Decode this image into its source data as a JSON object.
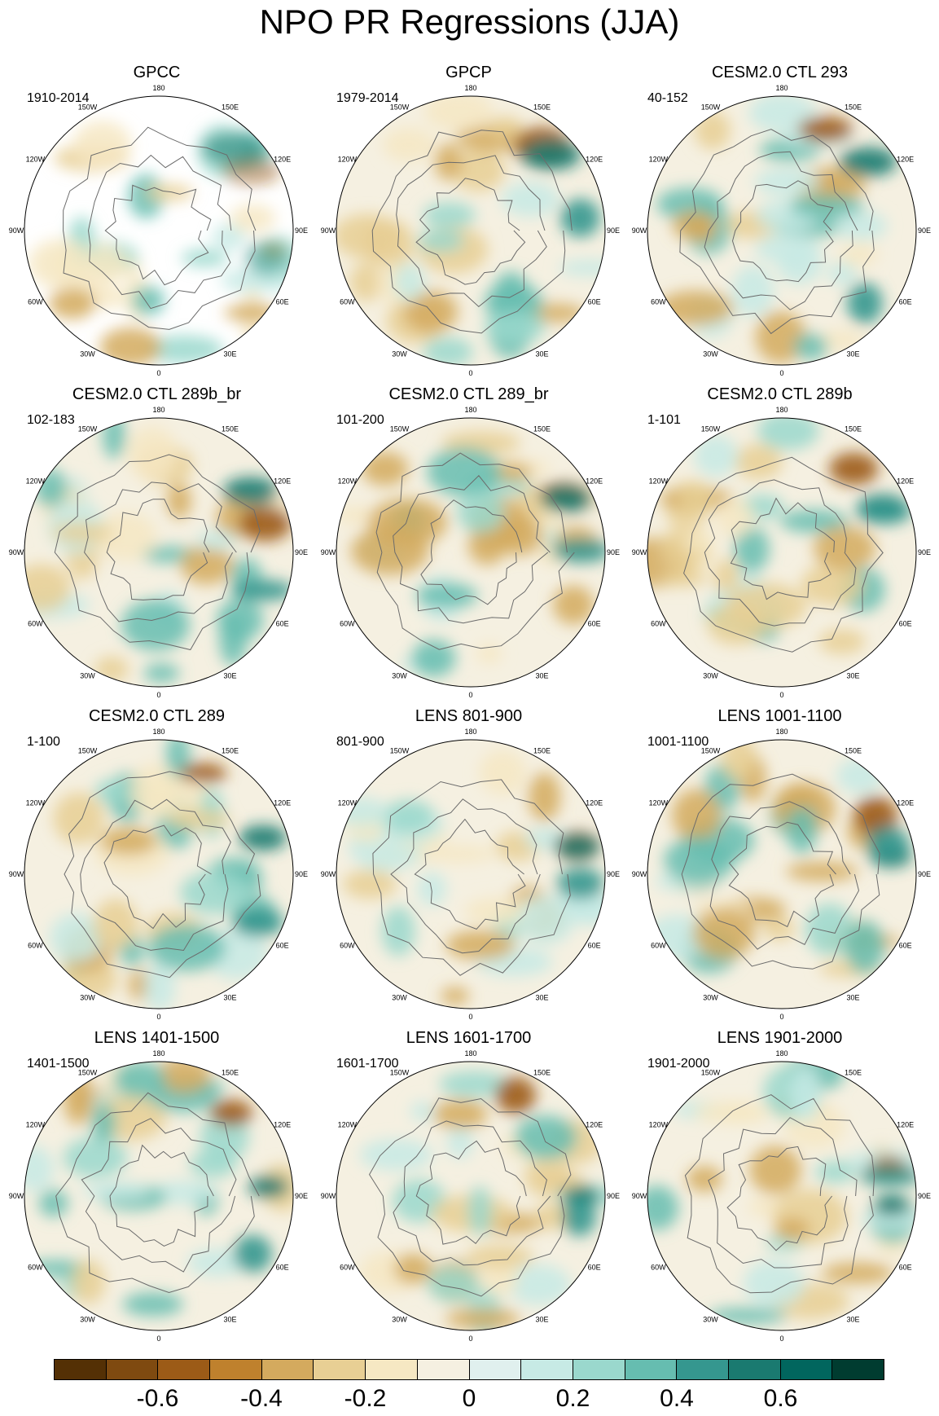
{
  "title": "NPO PR Regressions (JJA)",
  "longitude_labels": [
    "180",
    "150E",
    "120E",
    "90E",
    "60E",
    "30E",
    "0",
    "30W",
    "60W",
    "90W",
    "120W",
    "150W"
  ],
  "panels": [
    {
      "title": "GPCC",
      "period": "1910-2014"
    },
    {
      "title": "GPCP",
      "period": "1979-2014"
    },
    {
      "title": "CESM2.0 CTL 293",
      "period": "40-152"
    },
    {
      "title": "CESM2.0 CTL 289b_br",
      "period": "102-183"
    },
    {
      "title": "CESM2.0 CTL 289_br",
      "period": "101-200"
    },
    {
      "title": "CESM2.0 CTL 289b",
      "period": "1-101"
    },
    {
      "title": "CESM2.0 CTL 289",
      "period": "1-100"
    },
    {
      "title": "LENS 801-900",
      "period": "801-900"
    },
    {
      "title": "LENS 1001-1100",
      "period": "1001-1100"
    },
    {
      "title": "LENS 1401-1500",
      "period": "1401-1500"
    },
    {
      "title": "LENS 1601-1700",
      "period": "1601-1700"
    },
    {
      "title": "LENS 1901-2000",
      "period": "1901-2000"
    }
  ],
  "colorbar": {
    "colors": [
      "#543005",
      "#7f4a10",
      "#9c5b17",
      "#bf812d",
      "#d4aa5e",
      "#e8cf94",
      "#f6e8c3",
      "#f5f0e1",
      "#e0f0ee",
      "#c7eae5",
      "#9ad8cd",
      "#66bdb0",
      "#35978f",
      "#1a7a70",
      "#01665e",
      "#003c30"
    ],
    "labels": [
      "-0.6",
      "-0.4",
      "-0.2",
      "0",
      "0.2",
      "0.4",
      "0.6"
    ]
  }
}
